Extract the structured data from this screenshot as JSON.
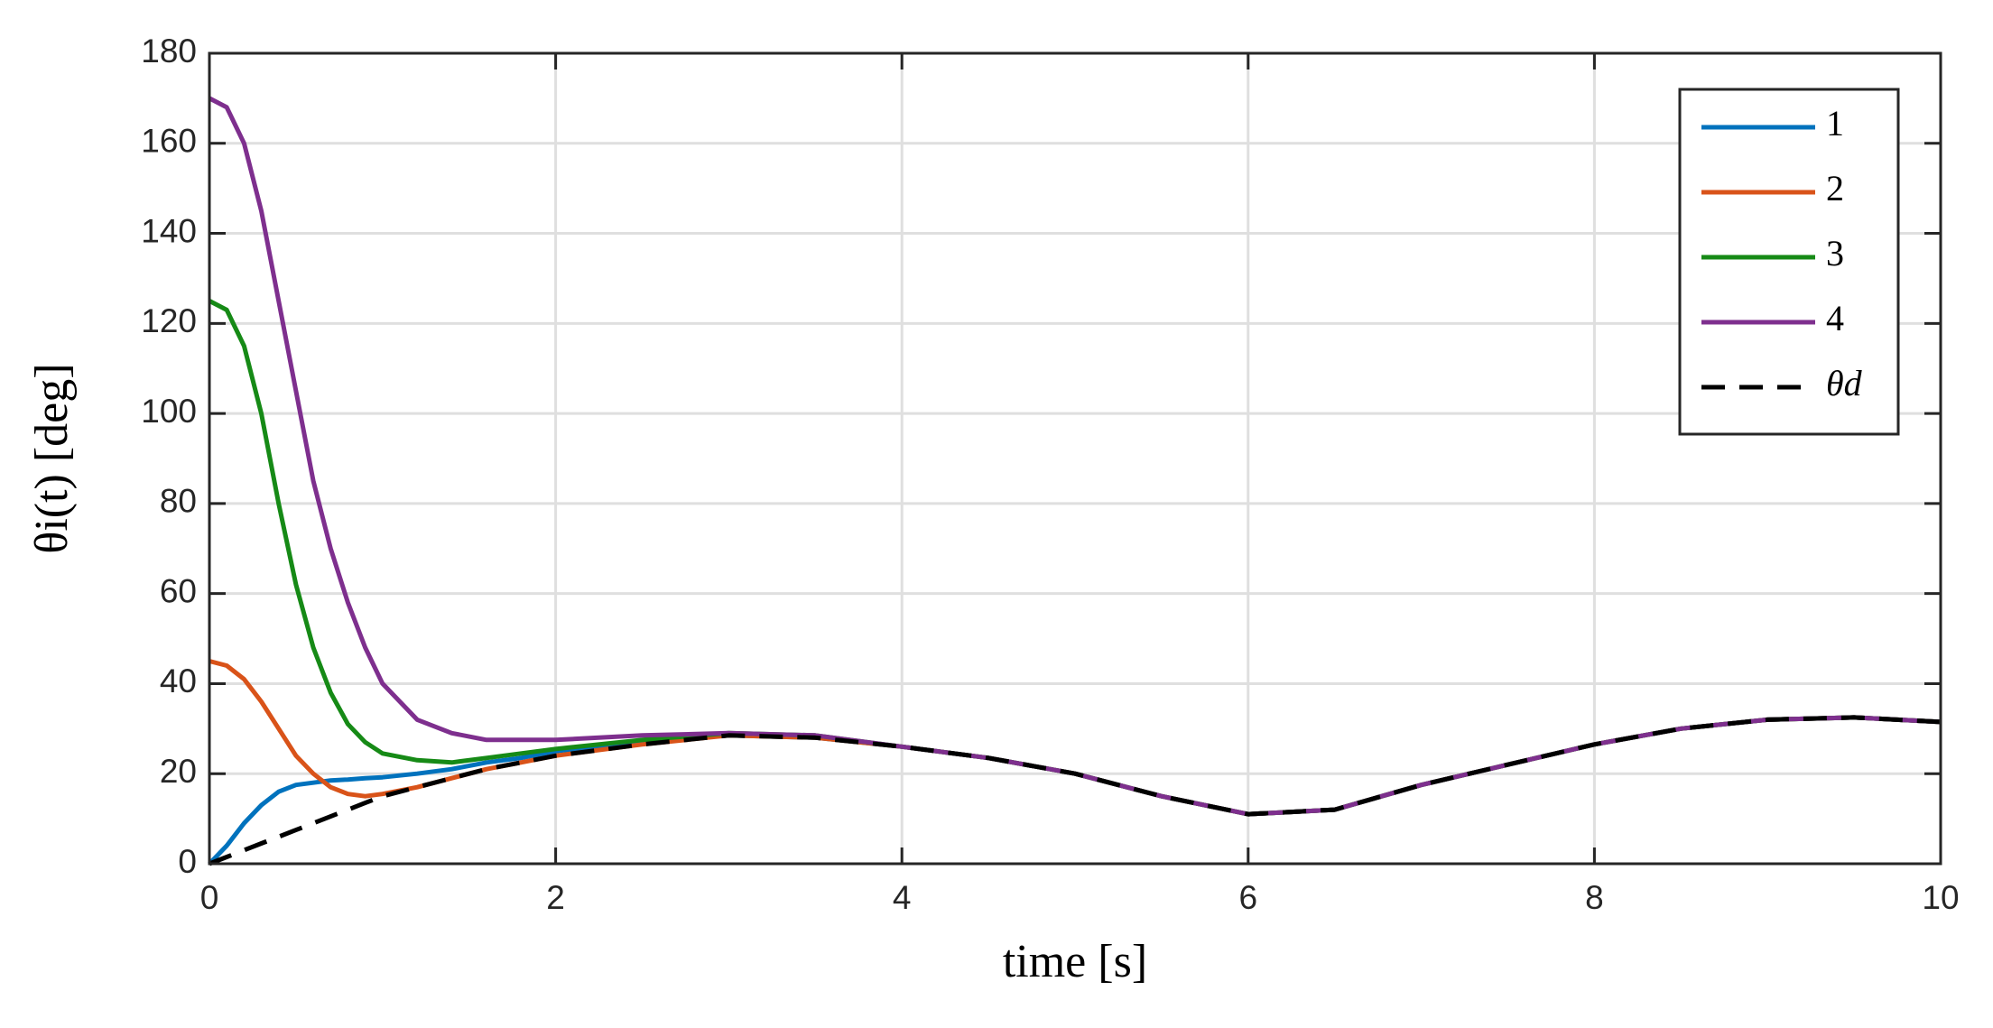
{
  "chart_data": {
    "type": "line",
    "xlabel": "time [s]",
    "ylabel": "θi(t) [deg]",
    "x": [
      0,
      0.1,
      0.2,
      0.3,
      0.4,
      0.5,
      0.6,
      0.7,
      0.8,
      0.9,
      1.0,
      1.2,
      1.4,
      1.6,
      1.8,
      2.0,
      2.5,
      3.0,
      3.5,
      4.0,
      4.5,
      5.0,
      5.5,
      6.0,
      6.5,
      7.0,
      7.5,
      8.0,
      8.5,
      9.0,
      9.5,
      10.0
    ],
    "series": [
      {
        "name": "1",
        "color": "#0072bd",
        "dashed": false,
        "values": [
          0,
          4,
          9,
          13,
          16,
          17.5,
          18,
          18.5,
          18.7,
          19,
          19.2,
          20,
          21,
          22.5,
          23.5,
          25,
          27,
          28.5,
          28,
          26,
          23.5,
          20,
          15,
          11,
          12,
          17.5,
          22,
          26.5,
          30,
          32,
          32.5,
          31.5
        ]
      },
      {
        "name": "2",
        "color": "#d95319",
        "dashed": false,
        "values": [
          45,
          44,
          41,
          36,
          30,
          24,
          20,
          17,
          15.5,
          15,
          15.5,
          17,
          19,
          21,
          22.5,
          24,
          26.5,
          28.5,
          28,
          26,
          23.5,
          20,
          15,
          11,
          12,
          17.5,
          22,
          26.5,
          30,
          32,
          32.5,
          31.5
        ]
      },
      {
        "name": "3",
        "color": "#168a16",
        "dashed": false,
        "values": [
          125,
          123,
          115,
          100,
          80,
          62,
          48,
          38,
          31,
          27,
          24.5,
          23,
          22.5,
          23.5,
          24.5,
          25.5,
          27.5,
          29,
          28.5,
          26,
          23.5,
          20,
          15,
          11,
          12,
          17.5,
          22,
          26.5,
          30,
          32,
          32.5,
          31.5
        ]
      },
      {
        "name": "4",
        "color": "#7e2f8e",
        "dashed": false,
        "values": [
          170,
          168,
          160,
          145,
          125,
          105,
          85,
          70,
          58,
          48,
          40,
          32,
          29,
          27.5,
          27.5,
          27.5,
          28.5,
          29,
          28.5,
          26,
          23.5,
          20,
          15,
          11,
          12,
          17.5,
          22,
          26.5,
          30,
          32,
          32.5,
          31.5
        ]
      },
      {
        "name": "θd",
        "color": "#000000",
        "dashed": true,
        "values": [
          0,
          1.5,
          3,
          4.5,
          6,
          7.5,
          9,
          10.5,
          12,
          13.5,
          15,
          17,
          19,
          21,
          22.5,
          24,
          26.5,
          28.5,
          28,
          26,
          23.5,
          20,
          15,
          11,
          12,
          17.5,
          22,
          26.5,
          30,
          32,
          32.5,
          31.5
        ]
      }
    ],
    "xlim": [
      0,
      10
    ],
    "xticks": [
      0,
      2,
      4,
      6,
      8,
      10
    ],
    "ylim": [
      0,
      180
    ],
    "yticks": [
      0,
      20,
      40,
      60,
      80,
      100,
      120,
      140,
      160,
      180
    ],
    "grid": true,
    "legend": "upper right"
  }
}
